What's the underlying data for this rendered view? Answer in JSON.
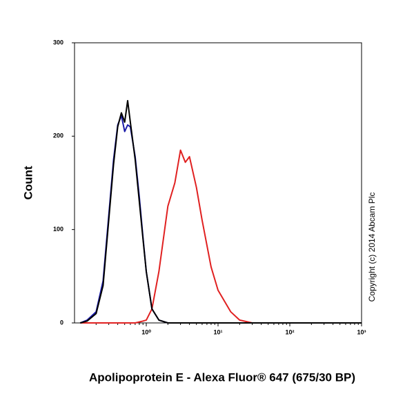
{
  "chart_data": {
    "type": "line",
    "log_x": true,
    "x_label": "Apolipoprotein E - Alexa Fluor® 647 (675/30 BP)",
    "y_label": "Count",
    "annotation": "Copyright (c) 2014 Abcam Plc",
    "x": [
      0.12,
      0.15,
      0.2,
      0.25,
      0.3,
      0.35,
      0.4,
      0.45,
      0.5,
      0.55,
      0.6,
      0.7,
      0.8,
      0.9,
      1.0,
      1.2,
      1.5,
      2,
      2.5,
      3,
      3.5,
      4,
      5,
      6,
      8,
      10,
      15,
      20,
      30,
      100,
      1000
    ],
    "series": [
      {
        "color": "#e02020",
        "values": [
          0,
          0,
          0,
          0,
          0,
          0,
          0,
          0,
          0,
          0,
          0,
          0,
          1,
          2,
          3,
          15,
          55,
          125,
          150,
          185,
          172,
          178,
          145,
          110,
          60,
          35,
          12,
          3,
          0,
          0,
          0
        ]
      },
      {
        "color": "#1a1aa8",
        "values": [
          0,
          3,
          12,
          45,
          115,
          175,
          212,
          222,
          205,
          212,
          210,
          178,
          135,
          92,
          55,
          15,
          3,
          0,
          0,
          0,
          0,
          0,
          0,
          0,
          0,
          0,
          0,
          0,
          0,
          0,
          0
        ]
      },
      {
        "color": "#000000",
        "values": [
          0,
          2,
          10,
          40,
          110,
          170,
          210,
          225,
          215,
          238,
          215,
          175,
          130,
          90,
          55,
          15,
          3,
          0,
          0,
          0,
          0,
          0,
          0,
          0,
          0,
          0,
          0,
          0,
          0,
          0,
          0
        ]
      }
    ],
    "xlim": [
      0.1,
      1000
    ],
    "ylim": [
      0,
      300
    ],
    "xticks": [
      {
        "value": 1,
        "label": "10⁰"
      },
      {
        "value": 10,
        "label": "10¹"
      },
      {
        "value": 100,
        "label": "10²"
      },
      {
        "value": 1000,
        "label": "10³"
      }
    ],
    "yticks": [
      0,
      100,
      200,
      300
    ]
  }
}
